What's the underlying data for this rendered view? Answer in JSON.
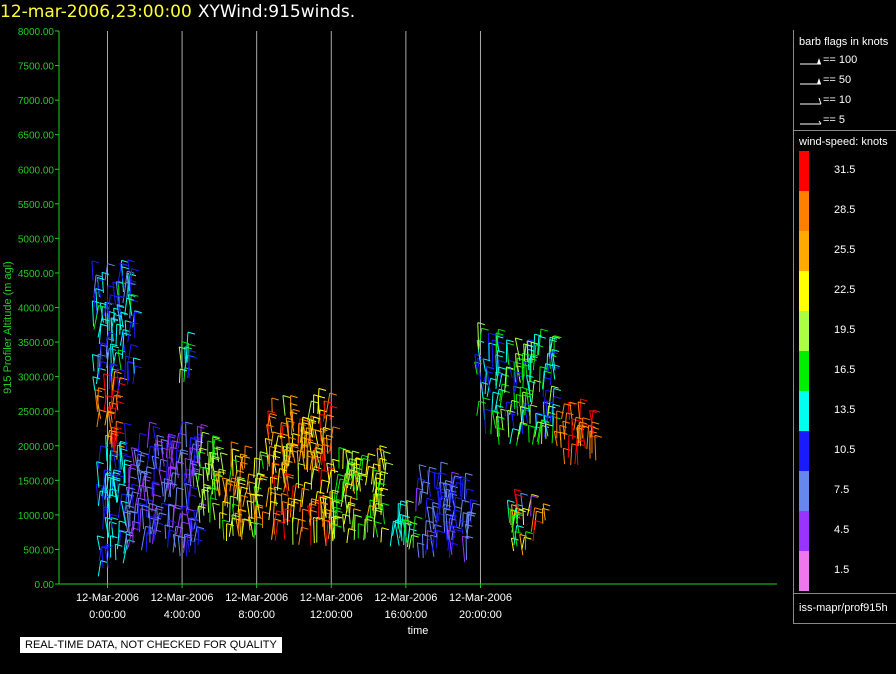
{
  "header": {
    "date": "12-mar-2006,23:00:00",
    "description": "XYWind:915winds."
  },
  "chart_data": {
    "type": "scatter",
    "subtype": "wind-barb time-height",
    "ylabel": "915 Profiler Altitude (m agl)",
    "xlabel": "time",
    "ylim": [
      0,
      8000
    ],
    "yticks": [
      "0.00",
      "500.00",
      "1000.00",
      "1500.00",
      "2000.00",
      "2500.00",
      "3000.00",
      "3500.00",
      "4000.00",
      "4500.00",
      "5000.00",
      "5500.00",
      "6000.00",
      "6500.00",
      "7000.00",
      "7500.00",
      "8000.00"
    ],
    "xrange_hours": [
      -2.6,
      35.9
    ],
    "xticks": [
      {
        "hour": 0,
        "date": "12-Mar-2006",
        "time": "0:00:00"
      },
      {
        "hour": 4,
        "date": "12-Mar-2006",
        "time": "4:00:00"
      },
      {
        "hour": 8,
        "date": "12-Mar-2006",
        "time": "8:00:00"
      },
      {
        "hour": 12,
        "date": "12-Mar-2006",
        "time": "12:00:00"
      },
      {
        "hour": 16,
        "date": "12-Mar-2006",
        "time": "16:00:00"
      },
      {
        "hour": 20,
        "date": "12-Mar-2006",
        "time": "20:00:00"
      }
    ],
    "axis_color": "#22cc22",
    "vertical_gridlines": true,
    "clusters": [
      {
        "t": [
          -0.5,
          1.0
        ],
        "alt": [
          100,
          1800
        ],
        "speed": [
          10,
          15
        ]
      },
      {
        "t": [
          -0.6,
          0.6
        ],
        "alt": [
          1800,
          2800
        ],
        "speed": [
          25,
          32
        ]
      },
      {
        "t": [
          -0.8,
          1.5
        ],
        "alt": [
          2800,
          4400
        ],
        "speed": [
          8,
          16
        ]
      },
      {
        "t": [
          1.0,
          5.0
        ],
        "alt": [
          400,
          2000
        ],
        "speed": [
          4,
          11
        ]
      },
      {
        "t": [
          3.8,
          4.4
        ],
        "alt": [
          2800,
          3300
        ],
        "speed": [
          10,
          19
        ]
      },
      {
        "t": [
          4.8,
          6.0
        ],
        "alt": [
          800,
          1900
        ],
        "speed": [
          16,
          20
        ]
      },
      {
        "t": [
          6.0,
          8.5
        ],
        "alt": [
          600,
          1700
        ],
        "speed": [
          17,
          29
        ]
      },
      {
        "t": [
          8.5,
          12.0
        ],
        "alt": [
          550,
          2500
        ],
        "speed": [
          20,
          32
        ]
      },
      {
        "t": [
          12.0,
          15.0
        ],
        "alt": [
          550,
          1700
        ],
        "speed": [
          15,
          25
        ]
      },
      {
        "t": [
          15.0,
          16.5
        ],
        "alt": [
          500,
          1000
        ],
        "speed": [
          12,
          19
        ]
      },
      {
        "t": [
          16.5,
          19.5
        ],
        "alt": [
          300,
          1400
        ],
        "speed": [
          5,
          12
        ]
      },
      {
        "t": [
          19.8,
          24.0
        ],
        "alt": [
          2000,
          3400
        ],
        "speed": [
          10,
          20
        ]
      },
      {
        "t": [
          24.0,
          26.2
        ],
        "alt": [
          1700,
          2400
        ],
        "speed": [
          26,
          32
        ]
      },
      {
        "t": [
          21.5,
          23.5
        ],
        "alt": [
          400,
          1000
        ],
        "speed": [
          4,
          32
        ]
      }
    ]
  },
  "legend": {
    "barb_title": "barb flags in knots",
    "barbs": [
      {
        "label": "== 100",
        "kind": "double-flag"
      },
      {
        "label": "== 50",
        "kind": "flag"
      },
      {
        "label": "== 10",
        "kind": "full"
      },
      {
        "label": "== 5",
        "kind": "half"
      }
    ],
    "speed_title": "wind-speed: knots",
    "speed_scale": [
      {
        "label": "31.5",
        "color": "#ff0000"
      },
      {
        "label": "28.5",
        "color": "#ff7f00"
      },
      {
        "label": "25.5",
        "color": "#ffaa00"
      },
      {
        "label": "22.5",
        "color": "#ffff00"
      },
      {
        "label": "19.5",
        "color": "#aaff44"
      },
      {
        "label": "16.5",
        "color": "#00ee00"
      },
      {
        "label": "13.5",
        "color": "#00ffee"
      },
      {
        "label": "10.5",
        "color": "#1a1aff"
      },
      {
        "label": "7.5",
        "color": "#6688ee"
      },
      {
        "label": "4.5",
        "color": "#9933ff"
      },
      {
        "label": "1.5",
        "color": "#ee77ee"
      }
    ],
    "source": "iss-mapr/prof915h"
  },
  "footer": {
    "quality_note": "REAL-TIME DATA, NOT CHECKED FOR QUALITY"
  }
}
